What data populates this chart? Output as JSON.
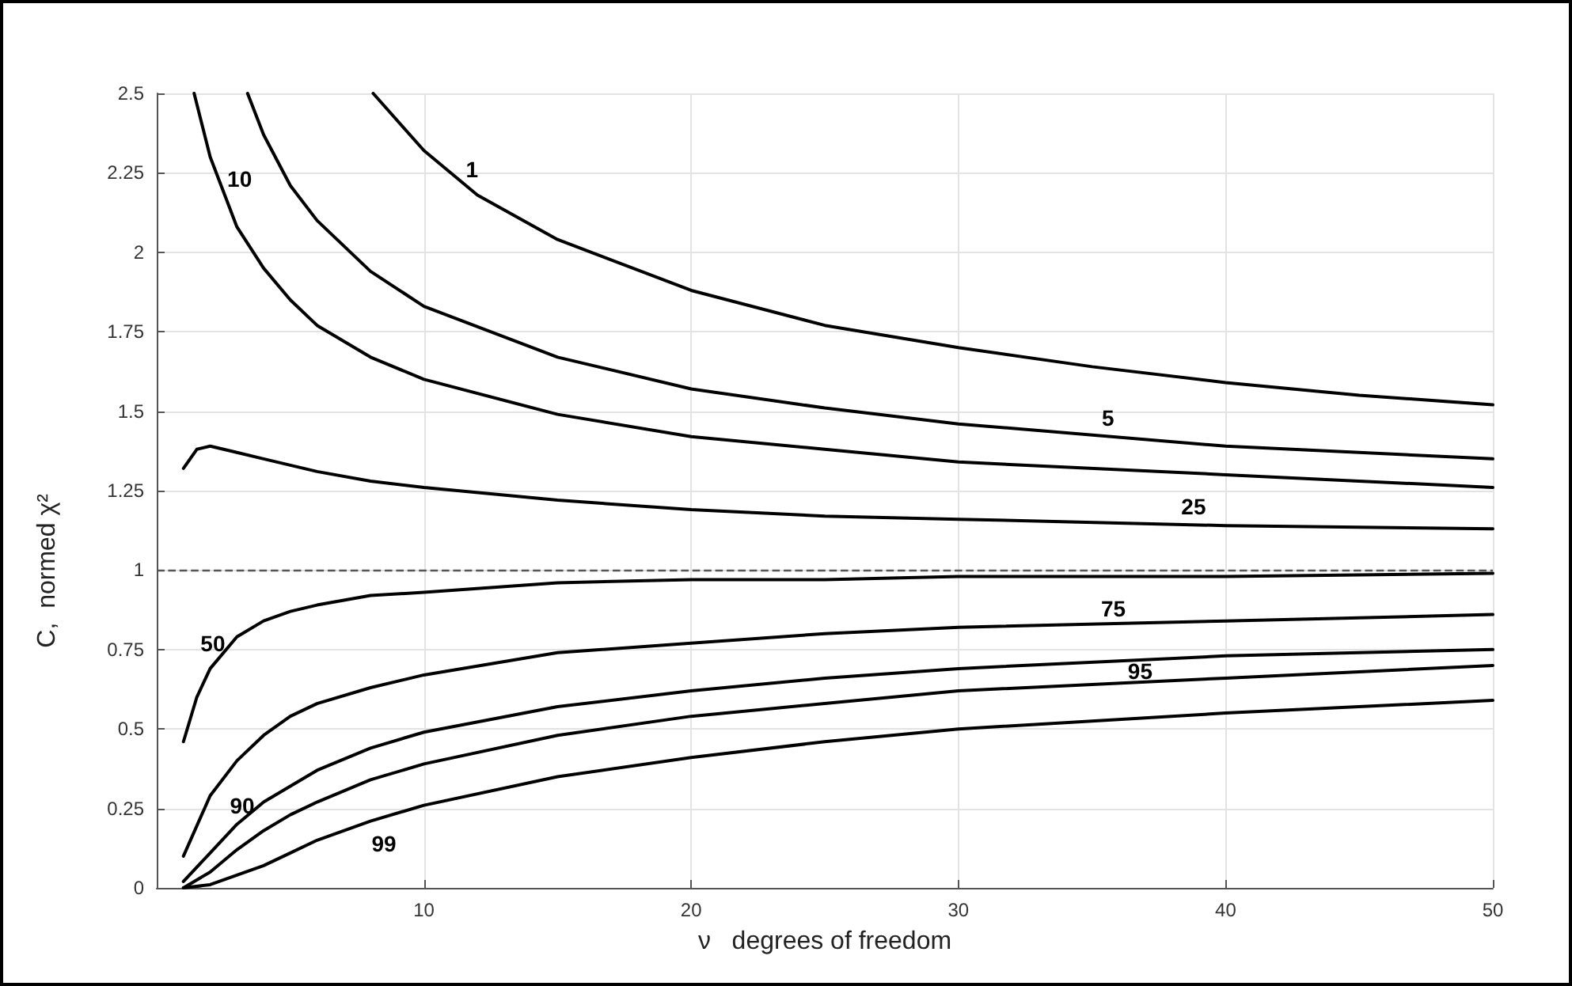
{
  "chart_data": {
    "type": "line",
    "xlabel": "ν   degrees of freedom",
    "ylabel": "C,  normed χ²",
    "xlim": [
      0,
      50
    ],
    "xticks": [
      10,
      20,
      30,
      40,
      50
    ],
    "ylim": [
      0,
      2.5
    ],
    "yticks": [
      0,
      0.25,
      0.5,
      0.75,
      1,
      1.25,
      1.5,
      1.75,
      2,
      2.25,
      2.5
    ],
    "grid": true,
    "marker": "none",
    "line_style": "solid",
    "series": [
      {
        "name": "1",
        "color": "#000000",
        "x": [
          8.1,
          10,
          12,
          15,
          20,
          25,
          30,
          35,
          40,
          45,
          50
        ],
        "values": [
          2.5,
          2.32,
          2.18,
          2.04,
          1.88,
          1.77,
          1.7,
          1.64,
          1.59,
          1.55,
          1.52
        ]
      },
      {
        "name": "5",
        "color": "#000000",
        "x": [
          3.4,
          4,
          5,
          6,
          8,
          10,
          15,
          20,
          25,
          30,
          40,
          50
        ],
        "values": [
          2.5,
          2.37,
          2.21,
          2.1,
          1.94,
          1.83,
          1.67,
          1.57,
          1.51,
          1.46,
          1.39,
          1.35
        ]
      },
      {
        "name": "10",
        "color": "#000000",
        "x": [
          1.4,
          2,
          3,
          4,
          5,
          6,
          8,
          10,
          15,
          20,
          25,
          30,
          40,
          50
        ],
        "values": [
          2.5,
          2.3,
          2.08,
          1.95,
          1.85,
          1.77,
          1.67,
          1.6,
          1.49,
          1.42,
          1.38,
          1.34,
          1.3,
          1.26
        ]
      },
      {
        "name": "25",
        "color": "#000000",
        "x": [
          1,
          1.5,
          2,
          3,
          4,
          5,
          6,
          8,
          10,
          15,
          20,
          25,
          30,
          40,
          50
        ],
        "values": [
          1.32,
          1.38,
          1.39,
          1.37,
          1.35,
          1.33,
          1.31,
          1.28,
          1.26,
          1.22,
          1.19,
          1.17,
          1.16,
          1.14,
          1.13
        ]
      },
      {
        "name": "50",
        "color": "#000000",
        "x": [
          1,
          1.5,
          2,
          3,
          4,
          5,
          6,
          8,
          10,
          15,
          20,
          25,
          30,
          40,
          50
        ],
        "values": [
          0.46,
          0.6,
          0.69,
          0.79,
          0.84,
          0.87,
          0.89,
          0.92,
          0.93,
          0.96,
          0.97,
          0.97,
          0.98,
          0.98,
          0.99
        ]
      },
      {
        "name": "75",
        "color": "#000000",
        "x": [
          1,
          2,
          3,
          4,
          5,
          6,
          8,
          10,
          15,
          20,
          25,
          30,
          40,
          50
        ],
        "values": [
          0.1,
          0.29,
          0.4,
          0.48,
          0.54,
          0.58,
          0.63,
          0.67,
          0.74,
          0.77,
          0.8,
          0.82,
          0.84,
          0.86
        ]
      },
      {
        "name": "90",
        "color": "#000000",
        "x": [
          1,
          2,
          3,
          4,
          5,
          6,
          8,
          10,
          15,
          20,
          25,
          30,
          40,
          50
        ],
        "values": [
          0.02,
          0.11,
          0.2,
          0.27,
          0.32,
          0.37,
          0.44,
          0.49,
          0.57,
          0.62,
          0.66,
          0.69,
          0.73,
          0.75
        ]
      },
      {
        "name": "95",
        "color": "#000000",
        "x": [
          1,
          2,
          3,
          4,
          5,
          6,
          8,
          10,
          15,
          20,
          25,
          30,
          40,
          50
        ],
        "values": [
          0,
          0.05,
          0.12,
          0.18,
          0.23,
          0.27,
          0.34,
          0.39,
          0.48,
          0.54,
          0.58,
          0.62,
          0.66,
          0.7
        ]
      },
      {
        "name": "99",
        "color": "#000000",
        "x": [
          1,
          2,
          3,
          4,
          5,
          6,
          8,
          10,
          15,
          20,
          25,
          30,
          40,
          50
        ],
        "values": [
          0,
          0.01,
          0.04,
          0.07,
          0.11,
          0.15,
          0.21,
          0.26,
          0.35,
          0.41,
          0.46,
          0.5,
          0.55,
          0.59
        ]
      }
    ],
    "ref_lines": [
      {
        "axis": "y",
        "value": 1,
        "line_style": "dashed",
        "color": "#555555"
      }
    ]
  }
}
